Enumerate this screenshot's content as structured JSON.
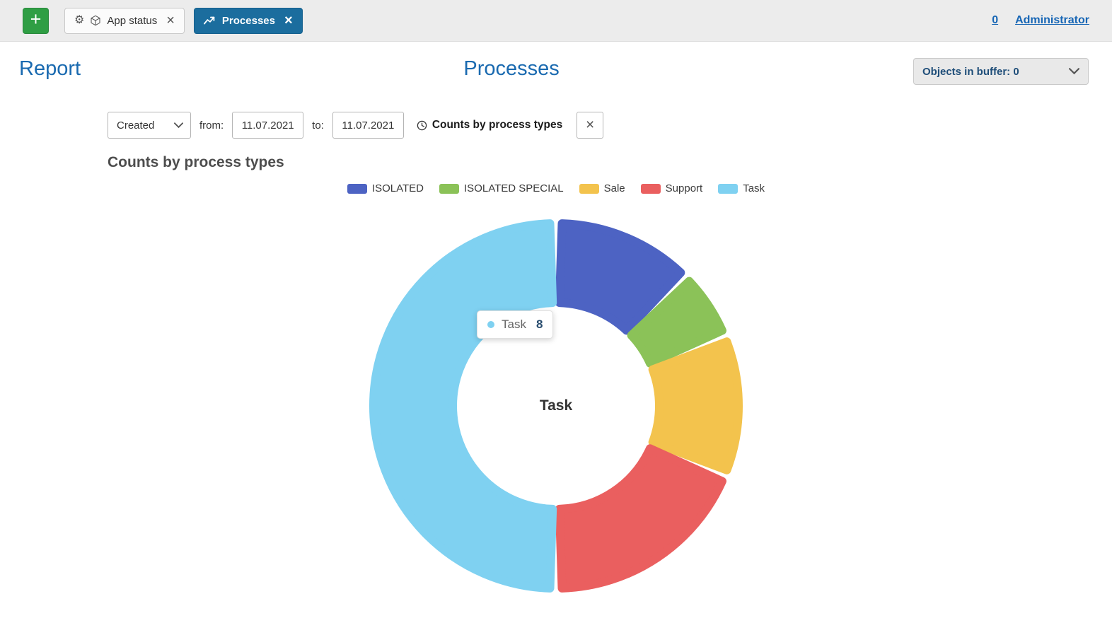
{
  "icons": {
    "add": "+",
    "gear": "⚙",
    "close": "×"
  },
  "topbar": {
    "tabs": [
      {
        "label": "App status"
      },
      {
        "label": "Processes"
      }
    ],
    "count_link": "0",
    "user_link": "Administrator"
  },
  "header": {
    "report_title": "Report",
    "page_title": "Processes",
    "buffer_dropdown_label": "Objects in buffer: 0"
  },
  "filters": {
    "type_select_value": "Created",
    "from_label": "from:",
    "from_value": "11.07.2021",
    "to_label": "to:",
    "to_value": "11.07.2021",
    "report_label": "Counts by process types"
  },
  "chart_data": {
    "type": "pie",
    "donut": true,
    "title": "Counts by process types",
    "categories": [
      "ISOLATED",
      "ISOLATED SPECIAL",
      "Sale",
      "Support",
      "Task"
    ],
    "values": [
      2,
      1,
      2,
      3,
      8
    ],
    "total": 16,
    "colors": [
      "#4d63c3",
      "#8bc258",
      "#f3c34d",
      "#ea5f5f",
      "#7fd1f1"
    ],
    "legend_position": "top",
    "center_label": "Task",
    "tooltip": {
      "label": "Task",
      "value": 8
    }
  }
}
